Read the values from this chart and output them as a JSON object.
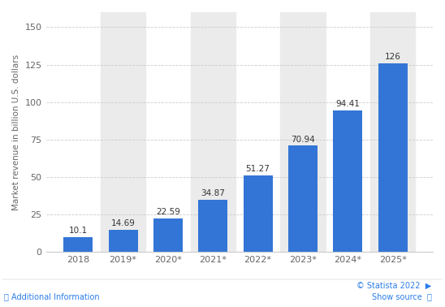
{
  "categories": [
    "2018",
    "2019*",
    "2020*",
    "2021*",
    "2022*",
    "2023*",
    "2024*",
    "2025*"
  ],
  "values": [
    10.1,
    14.69,
    22.59,
    34.87,
    51.27,
    70.94,
    94.41,
    126
  ],
  "bar_color": "#3375d6",
  "bar_width": 0.65,
  "ylabel": "Market revenue in billion U.S. dollars",
  "ylim": [
    0,
    160
  ],
  "yticks": [
    0,
    25,
    50,
    75,
    100,
    125,
    150
  ],
  "grid_color": "#cccccc",
  "outer_bg_color": "#ffffff",
  "plot_bg_color": "#ffffff",
  "col_shade_color": "#ebebeb",
  "value_fontsize": 7.5,
  "tick_fontsize": 8,
  "ylabel_fontsize": 7.5,
  "footer_left": "ⓘ Additional Information",
  "footer_right_top": "© Statista 2022  ▶",
  "footer_right_bottom": "Show source  ⓘ",
  "footer_color": "#2b7de9",
  "value_label_color": "#333333",
  "tick_color": "#666666",
  "spine_color": "#cccccc"
}
